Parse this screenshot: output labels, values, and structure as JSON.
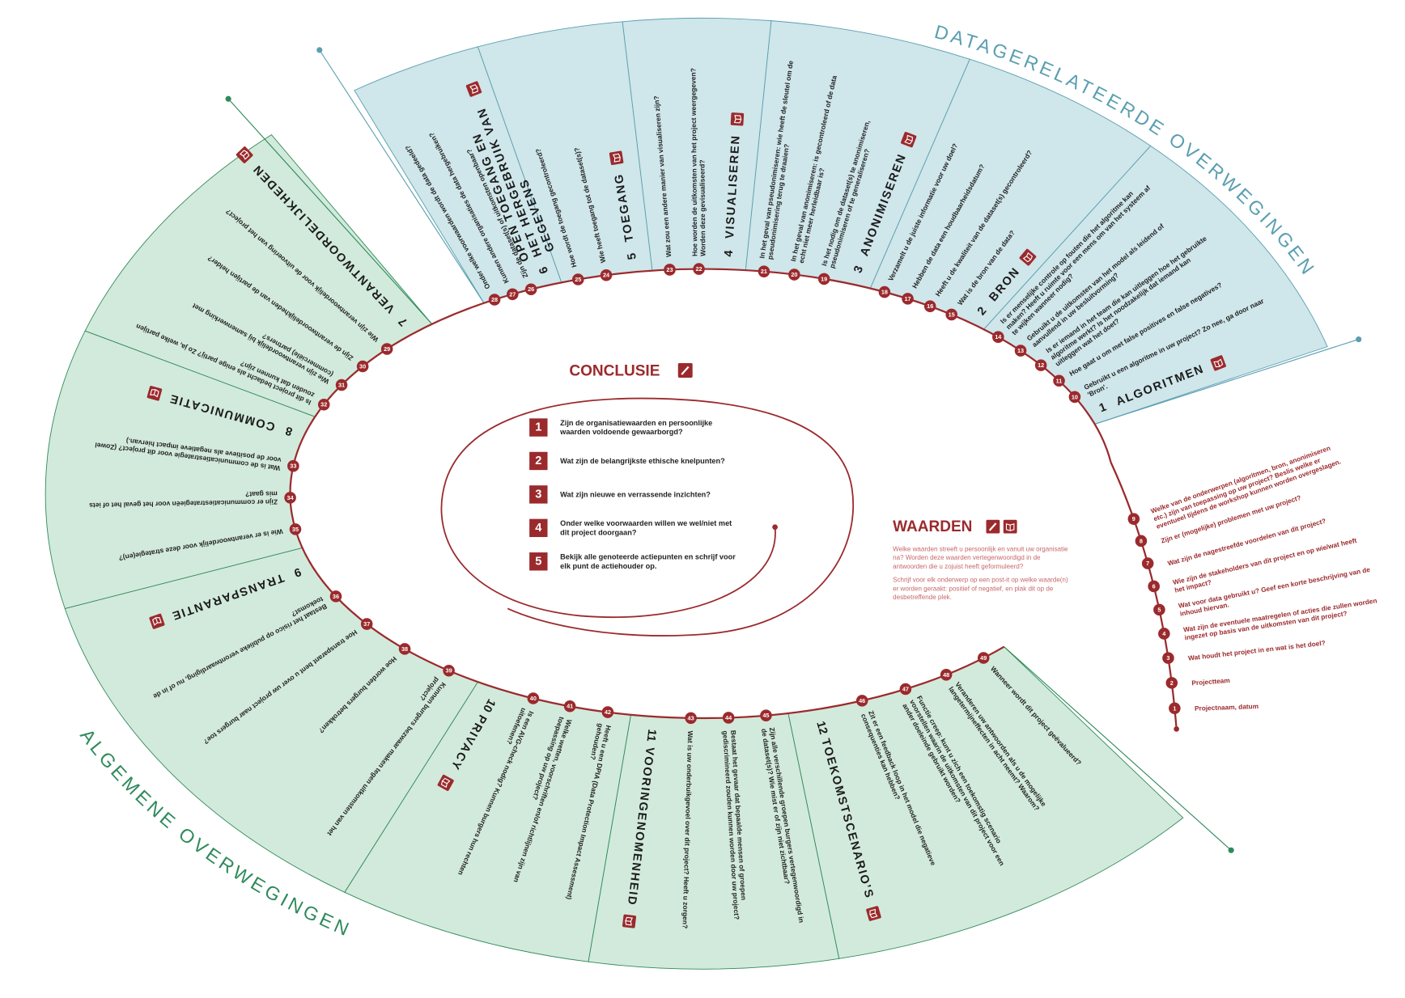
{
  "categories": {
    "data": "DATAGERELATEERDE OVERWEGINGEN",
    "general": "ALGEMENE OVERWEGINGEN"
  },
  "themes": [
    {
      "number": 1,
      "title": "ALGORITMEN",
      "questions": [
        {
          "number": 10,
          "text": "Gebruikt u een algoritme in uw project? Zo nee, ga door naar 'Bron'."
        },
        {
          "number": 11,
          "text": "Hoe gaat u om met false positives en false negatives?"
        },
        {
          "number": 12,
          "text": "Is er iemand in het team die kan uitleggen hoe het gebruikte algoritme werkt? Is het noodzakelijk dat iemand kan uitleggen wat het doet?"
        },
        {
          "number": 13,
          "text": "Gebruikt u de uitkomsten van het model als leidend of aanvullend in uw besluitvorming?"
        },
        {
          "number": 14,
          "text": "Is er menselijke controle op fouten die het algoritme kan maken? Heeft u ruimte voor een mens om van het systeem af te wijken wanneer nodig?"
        }
      ]
    },
    {
      "number": 2,
      "title": "BRON",
      "questions": [
        {
          "number": 15,
          "text": "Wat is de bron van de data?"
        },
        {
          "number": 16,
          "text": "Heeft u de kwaliteit van de dataset(s) gecontroleerd?"
        },
        {
          "number": 17,
          "text": "Hebben de data een houdbaarheidsdatum?"
        },
        {
          "number": 18,
          "text": "Verzamelt u de juiste informatie voor uw doel?"
        }
      ]
    },
    {
      "number": 3,
      "title": "ANONIMISEREN",
      "questions": [
        {
          "number": 19,
          "text": "Is het nodig om de dataset(s) te anonimiseren, pseudonimiseren of te generaliseren?"
        },
        {
          "number": 20,
          "text": "In het geval van anonimiseren: is gecontroleerd of de data echt niet meer herleidbaar is?"
        },
        {
          "number": 21,
          "text": "In het geval van pseudonimiseren: wie heeft de sleutel om de pseudonimisering terug te draaien?"
        }
      ]
    },
    {
      "number": 4,
      "title": "VISUALISEREN",
      "questions": [
        {
          "number": 22,
          "text": "Hoe worden de uitkomsten van het project weergegeven? Worden deze gevisualiseerd?"
        },
        {
          "number": 23,
          "text": "Wat zou een andere manier van visualiseren zijn?"
        }
      ]
    },
    {
      "number": 5,
      "title": "TOEGANG",
      "questions": [
        {
          "number": 24,
          "text": "Wie heeft toegang tot de dataset(s)?"
        },
        {
          "number": 25,
          "text": "Hoe wordt de toegang gecontroleerd?"
        }
      ]
    },
    {
      "number": 6,
      "title": "OPEN TOEGANG EN HET HERGEBRUIK VAN GEGEVENS",
      "questions": [
        {
          "number": 26,
          "text": "Zijn de dataset(s) of uitkomsten openbaar?"
        },
        {
          "number": 27,
          "text": "Kunnen andere organisaties de data hergebruiken?"
        },
        {
          "number": 28,
          "text": "Onder welke voorwaarden wordt de data gedeeld?"
        }
      ]
    },
    {
      "number": 7,
      "title": "VERANTWOORDELIJKHEDEN",
      "questions": [
        {
          "number": 29,
          "text": "Wie zijn verantwoordelijk voor de uitvoering van het project?"
        },
        {
          "number": 30,
          "text": "Zijn de verantwoordelijkheden van de partijen helder?"
        },
        {
          "number": 31,
          "text": "Wie zijn verantwoordelijk bij samenwerking met (commerciële) partners?"
        },
        {
          "number": 32,
          "text": "Is dit project bedacht als enige partij? Zo ja, welke partijen zouden dat kunnen zijn?"
        }
      ]
    },
    {
      "number": 8,
      "title": "COMMUNICATIE",
      "questions": [
        {
          "number": 33,
          "text": "Wat is de communicatiestrategie voor dit project? (Zowel voor de positieve als negatieve impact hiervan.)"
        },
        {
          "number": 34,
          "text": "Zijn er communicatiestrategieën voor het geval het of iets mis gaat?"
        },
        {
          "number": 35,
          "text": "Wie is er verantwoordelijk voor deze strategie(en)?"
        }
      ]
    },
    {
      "number": 9,
      "title": "TRANSPARANTIE",
      "questions": [
        {
          "number": 36,
          "text": "Bestaat het risico op publieke verontwaardiging, nu of in de toekomst?"
        },
        {
          "number": 37,
          "text": "Hoe transparant bent u over uw project naar burgers toe?"
        },
        {
          "number": 38,
          "text": "Hoe worden burgers betrokken?"
        },
        {
          "number": 39,
          "text": "Kunnen burgers bezwaar maken tegen uitkomsten van het project?"
        }
      ]
    },
    {
      "number": 10,
      "title": "PRIVACY",
      "questions": [
        {
          "number": 40,
          "text": "Is een AVG-check nodig? Kunnen burgers hun rechten uitoefenen?"
        },
        {
          "number": 41,
          "text": "Welke wetten, voorschriften en/of richtlijnen zijn van toepassing op uw project?"
        },
        {
          "number": 42,
          "text": "Heeft u een DPIA (Data Protection Impact Assessment) gehouden?"
        }
      ]
    },
    {
      "number": 11,
      "title": "VOORINGENOMENHEID",
      "questions": [
        {
          "number": 43,
          "text": "Wat is uw onderbuikgevoel over dit project? Heeft u zorgen?"
        },
        {
          "number": 44,
          "text": "Bestaat het gevaar dat bepaalde mensen of groepen gediscrimineerd zouden kunnen worden door uw project?"
        },
        {
          "number": 45,
          "text": "Zijn alle verschillende groepen burgers vertegenwoordigd in de dataset(s)? Wie mist er of zijn niet zichtbaar?"
        }
      ]
    },
    {
      "number": 12,
      "title": "TOEKOMSTSCENARIO’S",
      "questions": [
        {
          "number": 46,
          "text": "Zit er een feedback loop in het model die negatieve consequenties kan hebben?"
        },
        {
          "number": 47,
          "text": "Functie creep: kunt u zich een toekomstig scenario voorstellen waarin de uitkomsten van dit project voor een ander doeleinde gebruikt worden?"
        },
        {
          "number": 48,
          "text": "Veranderen uw antwoorden als u de mogelijke langetermijneffecten in acht neemt? Waarom?"
        },
        {
          "number": 49,
          "text": "Wanneer wordt dit project geëvalueerd?"
        }
      ]
    }
  ],
  "conclusion": {
    "title": "CONCLUSIE",
    "items": [
      {
        "number": 1,
        "text": "Zijn de organisatiewaarden en persoonlijke waarden voldoende gewaarborgd?"
      },
      {
        "number": 2,
        "text": "Wat zijn de belangrijkste ethische knelpunten?"
      },
      {
        "number": 3,
        "text": "Wat zijn nieuwe en verrassende inzichten?"
      },
      {
        "number": 4,
        "text": "Onder welke voorwaarden willen we wel/niet met dit project doorgaan?"
      },
      {
        "number": 5,
        "text": "Bekijk alle genoteerde actiepunten en schrijf voor elk punt de actiehouder op."
      }
    ]
  },
  "values": {
    "title": "WAARDEN",
    "paragraphs": [
      "Welke waarden streeft u persoonlijk en vanuit uw organisatie na? Worden deze waarden vertegenwoordigd in de antwoorden die u zojuist heeft geformuleerd?",
      "Schrijf voor elk onderwerp op een post-it op welke waarde(n) er worden geraakt: positief of negatief, en plak dit op de desbetreffende plek."
    ],
    "questions": [
      {
        "number": 1,
        "text": "Projectnaam, datum"
      },
      {
        "number": 2,
        "text": "Projectteam"
      },
      {
        "number": 3,
        "text": "Wat houdt het project in en wat is het doel?"
      },
      {
        "number": 4,
        "text": "Wat zijn de eventuele maatregelen of acties die zullen worden ingezet op basis van de uitkomsten van dit project?"
      },
      {
        "number": 5,
        "text": "Wat voor data gebruikt u? Geef een korte beschrijving van de inhoud hiervan."
      },
      {
        "number": 6,
        "text": "Wie zijn de stakeholders van dit project en op wie/wat heeft het impact?"
      },
      {
        "number": 7,
        "text": "Wat zijn de nagestreefde voordelen van dit project?"
      },
      {
        "number": 8,
        "text": "Zijn er (mogelijke) problemen met uw project?"
      },
      {
        "number": 9,
        "text": "Welke van de onderwerpen (algoritmen, bron, anonimiseren etc.) zijn van toepassing op uw project? Beslis welke er eventueel tijdens de workshop kunnen worden overgeslagen."
      }
    ]
  }
}
